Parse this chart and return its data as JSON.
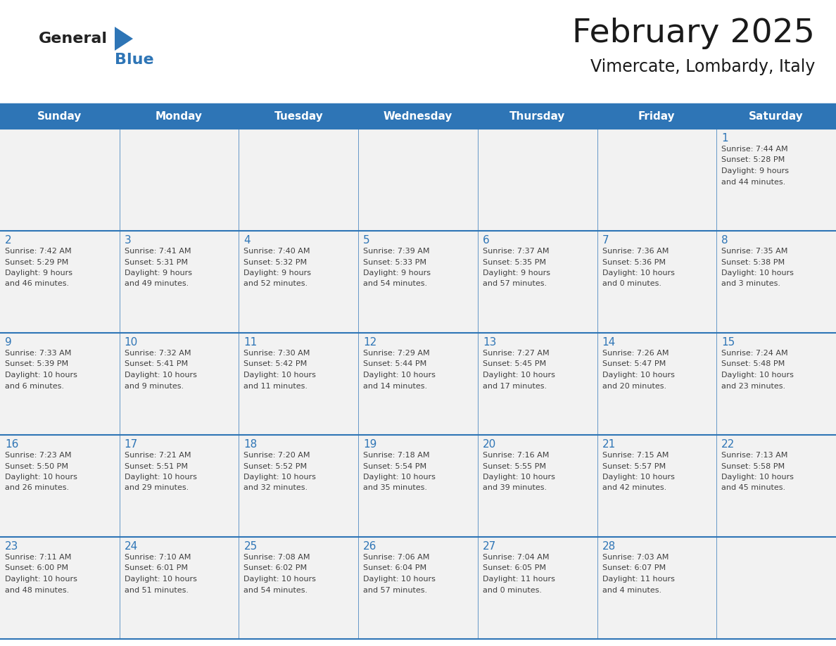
{
  "title": "February 2025",
  "subtitle": "Vimercate, Lombardy, Italy",
  "days_of_week": [
    "Sunday",
    "Monday",
    "Tuesday",
    "Wednesday",
    "Thursday",
    "Friday",
    "Saturday"
  ],
  "header_bg": "#2E75B6",
  "header_text": "#FFFFFF",
  "cell_bg": "#F2F2F2",
  "text_color": "#404040",
  "day_number_color": "#2E75B6",
  "border_color": "#2E75B6",
  "logo_general_color": "#222222",
  "logo_blue_color": "#2E75B6",
  "calendar_data": [
    [
      {
        "day": null,
        "info": ""
      },
      {
        "day": null,
        "info": ""
      },
      {
        "day": null,
        "info": ""
      },
      {
        "day": null,
        "info": ""
      },
      {
        "day": null,
        "info": ""
      },
      {
        "day": null,
        "info": ""
      },
      {
        "day": 1,
        "info": "Sunrise: 7:44 AM\nSunset: 5:28 PM\nDaylight: 9 hours\nand 44 minutes."
      }
    ],
    [
      {
        "day": 2,
        "info": "Sunrise: 7:42 AM\nSunset: 5:29 PM\nDaylight: 9 hours\nand 46 minutes."
      },
      {
        "day": 3,
        "info": "Sunrise: 7:41 AM\nSunset: 5:31 PM\nDaylight: 9 hours\nand 49 minutes."
      },
      {
        "day": 4,
        "info": "Sunrise: 7:40 AM\nSunset: 5:32 PM\nDaylight: 9 hours\nand 52 minutes."
      },
      {
        "day": 5,
        "info": "Sunrise: 7:39 AM\nSunset: 5:33 PM\nDaylight: 9 hours\nand 54 minutes."
      },
      {
        "day": 6,
        "info": "Sunrise: 7:37 AM\nSunset: 5:35 PM\nDaylight: 9 hours\nand 57 minutes."
      },
      {
        "day": 7,
        "info": "Sunrise: 7:36 AM\nSunset: 5:36 PM\nDaylight: 10 hours\nand 0 minutes."
      },
      {
        "day": 8,
        "info": "Sunrise: 7:35 AM\nSunset: 5:38 PM\nDaylight: 10 hours\nand 3 minutes."
      }
    ],
    [
      {
        "day": 9,
        "info": "Sunrise: 7:33 AM\nSunset: 5:39 PM\nDaylight: 10 hours\nand 6 minutes."
      },
      {
        "day": 10,
        "info": "Sunrise: 7:32 AM\nSunset: 5:41 PM\nDaylight: 10 hours\nand 9 minutes."
      },
      {
        "day": 11,
        "info": "Sunrise: 7:30 AM\nSunset: 5:42 PM\nDaylight: 10 hours\nand 11 minutes."
      },
      {
        "day": 12,
        "info": "Sunrise: 7:29 AM\nSunset: 5:44 PM\nDaylight: 10 hours\nand 14 minutes."
      },
      {
        "day": 13,
        "info": "Sunrise: 7:27 AM\nSunset: 5:45 PM\nDaylight: 10 hours\nand 17 minutes."
      },
      {
        "day": 14,
        "info": "Sunrise: 7:26 AM\nSunset: 5:47 PM\nDaylight: 10 hours\nand 20 minutes."
      },
      {
        "day": 15,
        "info": "Sunrise: 7:24 AM\nSunset: 5:48 PM\nDaylight: 10 hours\nand 23 minutes."
      }
    ],
    [
      {
        "day": 16,
        "info": "Sunrise: 7:23 AM\nSunset: 5:50 PM\nDaylight: 10 hours\nand 26 minutes."
      },
      {
        "day": 17,
        "info": "Sunrise: 7:21 AM\nSunset: 5:51 PM\nDaylight: 10 hours\nand 29 minutes."
      },
      {
        "day": 18,
        "info": "Sunrise: 7:20 AM\nSunset: 5:52 PM\nDaylight: 10 hours\nand 32 minutes."
      },
      {
        "day": 19,
        "info": "Sunrise: 7:18 AM\nSunset: 5:54 PM\nDaylight: 10 hours\nand 35 minutes."
      },
      {
        "day": 20,
        "info": "Sunrise: 7:16 AM\nSunset: 5:55 PM\nDaylight: 10 hours\nand 39 minutes."
      },
      {
        "day": 21,
        "info": "Sunrise: 7:15 AM\nSunset: 5:57 PM\nDaylight: 10 hours\nand 42 minutes."
      },
      {
        "day": 22,
        "info": "Sunrise: 7:13 AM\nSunset: 5:58 PM\nDaylight: 10 hours\nand 45 minutes."
      }
    ],
    [
      {
        "day": 23,
        "info": "Sunrise: 7:11 AM\nSunset: 6:00 PM\nDaylight: 10 hours\nand 48 minutes."
      },
      {
        "day": 24,
        "info": "Sunrise: 7:10 AM\nSunset: 6:01 PM\nDaylight: 10 hours\nand 51 minutes."
      },
      {
        "day": 25,
        "info": "Sunrise: 7:08 AM\nSunset: 6:02 PM\nDaylight: 10 hours\nand 54 minutes."
      },
      {
        "day": 26,
        "info": "Sunrise: 7:06 AM\nSunset: 6:04 PM\nDaylight: 10 hours\nand 57 minutes."
      },
      {
        "day": 27,
        "info": "Sunrise: 7:04 AM\nSunset: 6:05 PM\nDaylight: 11 hours\nand 0 minutes."
      },
      {
        "day": 28,
        "info": "Sunrise: 7:03 AM\nSunset: 6:07 PM\nDaylight: 11 hours\nand 4 minutes."
      },
      {
        "day": null,
        "info": ""
      }
    ]
  ],
  "fig_width": 11.88,
  "fig_height": 9.18,
  "dpi": 100
}
